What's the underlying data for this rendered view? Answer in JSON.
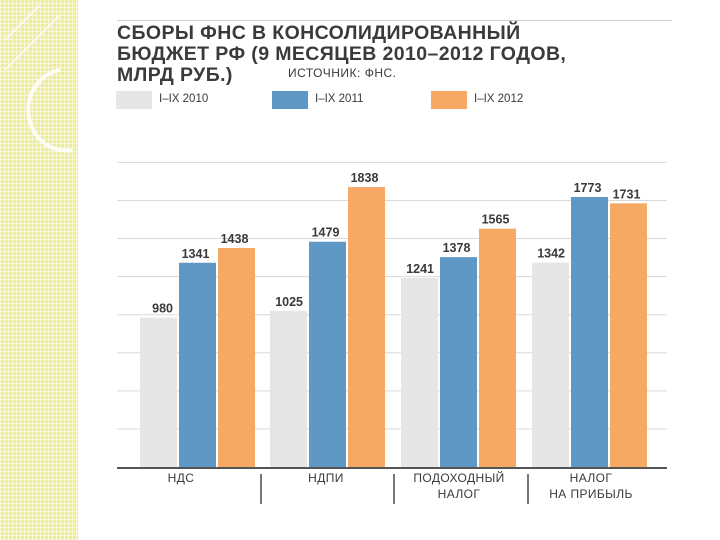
{
  "title_lines": [
    "СБОРЫ ФНС В КОНСОЛИДИРОВАННЫЙ",
    "БЮДЖЕТ РФ (9 МЕСЯЦЕВ 2010–2012 ГОДОВ,",
    "МЛРД РУБ.)"
  ],
  "source": "ИСТОЧНИК: ФНС.",
  "colors": {
    "2010": "#e6e6e6",
    "2011": "#5f98c4",
    "2012": "#f6a865",
    "background_strip": "#ecec9a"
  },
  "chart_data": {
    "type": "bar",
    "title": "СБОРЫ ФНС В КОНСОЛИДИРОВАННЫЙ БЮДЖЕТ РФ (9 МЕСЯЦЕВ 2010–2012 ГОДОВ, МЛРД РУБ.)",
    "categories": [
      {
        "line1": "НДС",
        "line2": ""
      },
      {
        "line1": "НДПИ",
        "line2": ""
      },
      {
        "line1": "ПОДОХОДНЫЙ",
        "line2": "НАЛОГ"
      },
      {
        "line1": "НАЛОГ",
        "line2": "НА ПРИБЫЛЬ"
      }
    ],
    "series": [
      {
        "name": "I–IX 2010",
        "values": [
          980,
          1025,
          1241,
          1342
        ]
      },
      {
        "name": "I–IX 2011",
        "values": [
          1341,
          1479,
          1378,
          1773
        ]
      },
      {
        "name": "I–IX 2012",
        "values": [
          1438,
          1838,
          1565,
          1731
        ]
      }
    ],
    "xlabel": "",
    "ylabel": "",
    "ylim": [
      0,
      2000
    ],
    "grid": true,
    "legend_position": "top-left"
  }
}
